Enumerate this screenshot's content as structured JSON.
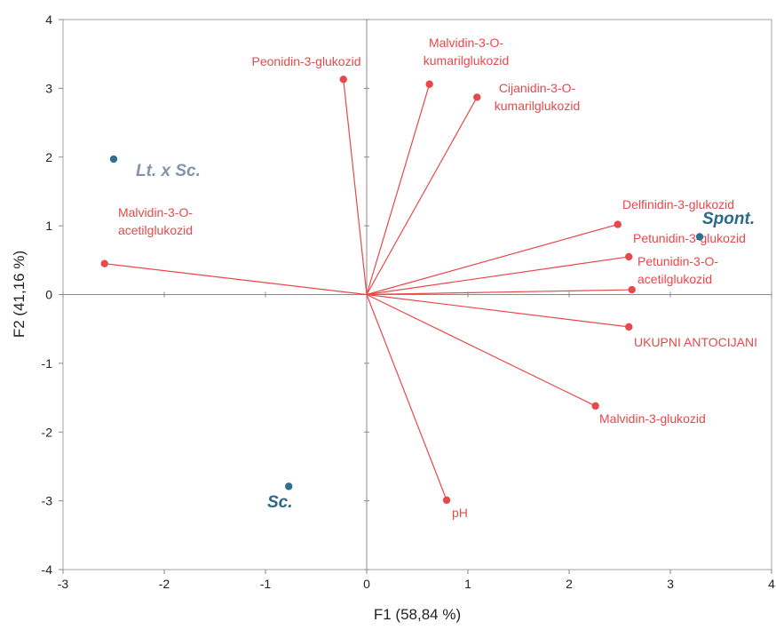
{
  "chart_data": {
    "type": "scatter",
    "xlabel": "F1 (58,84 %)",
    "ylabel": "F2 (41,16 %)",
    "xlim": [
      -3,
      4
    ],
    "ylim": [
      -4,
      4
    ],
    "x_ticks": [
      "-3",
      "-2",
      "-1",
      "0",
      "1",
      "2",
      "3",
      "4"
    ],
    "y_ticks": [
      "-4",
      "-3",
      "-2",
      "-1",
      "0",
      "1",
      "2",
      "3",
      "4"
    ],
    "grid": false,
    "variables": [
      {
        "label": [
          "Peonidin-3-glukozid"
        ],
        "x": -0.23,
        "y": 3.13
      },
      {
        "label": [
          "Malvidin-3-O-",
          "kumarilglukozid"
        ],
        "x": 0.62,
        "y": 3.06
      },
      {
        "label": [
          "Cijanidin-3-O-",
          "kumarilglukozid"
        ],
        "x": 1.09,
        "y": 2.87
      },
      {
        "label": [
          "Malvidin-3-O-",
          "acetilglukozid"
        ],
        "x": -2.59,
        "y": 0.45
      },
      {
        "label": [
          "Delfinidin-3-glukozid"
        ],
        "x": 2.48,
        "y": 1.02
      },
      {
        "label": [
          "Petunidin-3-glukozid"
        ],
        "x": 2.59,
        "y": 0.55
      },
      {
        "label": [
          "Petunidin-3-O-",
          "acetilglukozid"
        ],
        "x": 2.62,
        "y": 0.07
      },
      {
        "label": [
          "UKUPNI ANTOCIJANI"
        ],
        "x": 2.59,
        "y": -0.47
      },
      {
        "label": [
          "Malvidin-3-glukozid"
        ],
        "x": 2.26,
        "y": -1.62
      },
      {
        "label": [
          "pH"
        ],
        "x": 0.79,
        "y": -2.99
      }
    ],
    "observations": [
      {
        "label": "Lt. x Sc.",
        "x": -2.5,
        "y": 1.97,
        "color": "#8494a8"
      },
      {
        "label": "Spont.",
        "x": 3.29,
        "y": 0.84,
        "color": "#2a6b8c"
      },
      {
        "label": "Sc.",
        "x": -0.77,
        "y": -2.79,
        "color": "#2a6b8c"
      }
    ],
    "colors": {
      "variable": "#e8484a",
      "observation_point": "#2f6f8f"
    }
  }
}
